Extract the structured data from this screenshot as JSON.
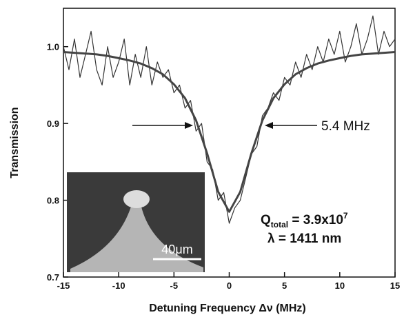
{
  "chart_data": {
    "type": "line",
    "x_label": "Detuning Frequency Δν (MHz)",
    "y_label": "Transmission",
    "xlim": [
      -15,
      15
    ],
    "ylim": [
      0.7,
      1.05
    ],
    "xticks": [
      -15,
      -10,
      -5,
      0,
      5,
      10,
      15
    ],
    "yticks": [
      0.7,
      0.8,
      0.9,
      {
        "value": 1,
        "label": "1.0"
      }
    ],
    "series": [
      {
        "color": "#333333",
        "x": [
          -15,
          -14.5,
          -14,
          -13.5,
          -13,
          -12.5,
          -12,
          -11.5,
          -11,
          -10.5,
          -10,
          -9.5,
          -9,
          -8.5,
          -8,
          -7.5,
          -7,
          -6.5,
          -6,
          -5.5,
          -5,
          -4.5,
          -4,
          -3.5,
          -3,
          -2.5,
          -2,
          -1.5,
          -1,
          -0.5,
          0,
          0.5,
          1,
          1.5,
          2,
          2.5,
          3,
          3.5,
          4,
          4.5,
          5,
          5.5,
          6,
          6.5,
          7,
          7.5,
          8,
          8.5,
          9,
          9.5,
          10,
          10.5,
          11,
          11.5,
          12,
          12.5,
          13,
          13.5,
          14,
          14.5,
          15
        ],
        "values": [
          1.0,
          0.97,
          1.01,
          0.96,
          0.99,
          1.02,
          0.97,
          0.95,
          1.0,
          0.96,
          0.98,
          1.01,
          0.95,
          0.99,
          0.96,
          1.0,
          0.95,
          0.98,
          0.96,
          0.97,
          0.94,
          0.95,
          0.92,
          0.93,
          0.89,
          0.9,
          0.85,
          0.84,
          0.8,
          0.81,
          0.77,
          0.79,
          0.8,
          0.83,
          0.86,
          0.87,
          0.91,
          0.92,
          0.94,
          0.93,
          0.96,
          0.95,
          0.98,
          0.96,
          0.99,
          0.97,
          1.0,
          0.98,
          1.01,
          0.99,
          1.02,
          0.98,
          1.0,
          1.03,
          0.99,
          1.01,
          1.04,
          0.99,
          1.02,
          1.0,
          1.01
        ]
      },
      {
        "color": "#444444",
        "x": [
          -15,
          -14,
          -13,
          -12,
          -11,
          -10,
          -9,
          -8,
          -7,
          -6,
          -5,
          -4,
          -3,
          -2,
          -1,
          0,
          1,
          2,
          3,
          4,
          5,
          6,
          7,
          8,
          9,
          10,
          11,
          12,
          13,
          14,
          15
        ],
        "values": [
          0.993,
          0.992,
          0.991,
          0.99,
          0.988,
          0.985,
          0.982,
          0.978,
          0.972,
          0.964,
          0.951,
          0.933,
          0.904,
          0.861,
          0.811,
          0.785,
          0.811,
          0.861,
          0.904,
          0.933,
          0.951,
          0.964,
          0.972,
          0.978,
          0.982,
          0.985,
          0.988,
          0.99,
          0.991,
          0.992,
          0.993
        ]
      }
    ],
    "annotations": {
      "linewidth": "5.4 MHz",
      "q_symbol": "Q",
      "q_subscript": "total",
      "q_value": " = 3.9x10",
      "q_exponent": "7",
      "wavelength": "λ = 1411 nm"
    },
    "inset": {
      "scale_label": "40μm"
    }
  }
}
